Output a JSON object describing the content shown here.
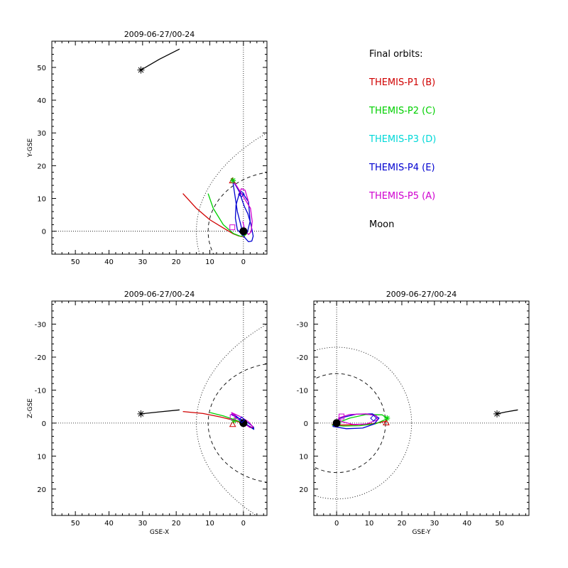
{
  "colors": {
    "p1": "#d00000",
    "p2": "#00d000",
    "p3": "#00d8d8",
    "p4": "#0000d0",
    "p5": "#d000d0",
    "moon": "#000000"
  },
  "legend": {
    "title": "Final orbits:",
    "items": [
      {
        "label": "THEMIS-P1 (B)",
        "color": "#d00000"
      },
      {
        "label": "THEMIS-P2 (C)",
        "color": "#00d000"
      },
      {
        "label": "THEMIS-P3 (D)",
        "color": "#00d8d8"
      },
      {
        "label": "THEMIS-P4 (E)",
        "color": "#0000d0"
      },
      {
        "label": "THEMIS-P5 (A)",
        "color": "#d000d0"
      },
      {
        "label": "Moon",
        "color": "#000000"
      }
    ]
  },
  "chart_data": [
    {
      "type": "line",
      "id": "xy",
      "title": "2009-06-27/00-24",
      "xlabel": "",
      "ylabel": "Y-GSE",
      "xlim": [
        57,
        -7
      ],
      "ylim": [
        58,
        -7
      ],
      "xticks": [
        50,
        40,
        30,
        20,
        10,
        0
      ],
      "yticks": [
        0,
        10,
        20,
        30,
        40,
        50
      ],
      "grid": false,
      "reference_lines": {
        "x0": true,
        "y0": true
      },
      "boundaries": {
        "bow_shock": "dotted",
        "magnetopause": "dashed"
      },
      "earth": {
        "x": 0,
        "y": 0,
        "r": 1.1
      },
      "moon_marker": {
        "x": 30.5,
        "y": 49.2
      },
      "series": [
        {
          "name": "Moon",
          "color": "#000000",
          "x": [
            30.5,
            25,
            19
          ],
          "y": [
            49.2,
            52.5,
            55.6
          ]
        },
        {
          "name": "THEMIS-P1 (B)",
          "color": "#d00000",
          "x": [
            18,
            14,
            10,
            6,
            3,
            1.5,
            0.5,
            -0.5
          ],
          "y": [
            11.5,
            7,
            3.5,
            1,
            -0.8,
            -1.4,
            -1.6,
            -1.5
          ]
        },
        {
          "name": "THEMIS-P2 (C)",
          "color": "#00d000",
          "x": [
            10.5,
            9,
            6,
            3,
            1,
            -0.2,
            -1.3
          ],
          "y": [
            11.5,
            7,
            2,
            -0.7,
            -1.5,
            -1.4,
            -0.5
          ]
        },
        {
          "name": "THEMIS-P4 (E)",
          "color": "#0000d0",
          "x": [
            3.6,
            2.3,
            1.2,
            0.4,
            -0.3,
            -1.3,
            -2.2,
            -2.7,
            -2.9,
            -2.5,
            -1.5,
            0,
            0.8,
            1.8,
            3.2
          ],
          "y": [
            16,
            14,
            12,
            9.5,
            7.5,
            5.4,
            2.2,
            -0.3,
            -1.5,
            -3,
            -3.2,
            -1.5,
            2,
            6,
            15.5
          ]
        },
        {
          "name": "THEMIS-P4 (E) inner",
          "color": "#0000d0",
          "x": [
            -2,
            -1.5,
            0,
            1.2,
            2.2,
            2.4,
            1.8,
            0.3,
            -1.1,
            -2
          ],
          "y": [
            3,
            9,
            11.3,
            11.6,
            8,
            4,
            0.5,
            -1.2,
            -0.5,
            3
          ]
        },
        {
          "name": "THEMIS-P5 (A)",
          "color": "#d000d0",
          "x": [
            3.5,
            2,
            0.6,
            -0.6,
            -2.1,
            -2.6,
            -2.3,
            -1.5,
            -0.5,
            0.2
          ],
          "y": [
            16,
            13.8,
            11.5,
            9.5,
            7,
            3,
            -0.2,
            -1,
            0,
            3
          ]
        },
        {
          "name": "THEMIS-P5 (A) tail",
          "color": "#d000d0",
          "x": [
            -1.5,
            -0.5,
            0.6,
            1.5
          ],
          "y": [
            9,
            12.5,
            13,
            11
          ]
        }
      ],
      "markers": [
        {
          "shape": "triangle",
          "color": "#d00000",
          "x": 3.3,
          "y": 15.4
        },
        {
          "shape": "diamond",
          "color": "#0000d0",
          "x": 0.6,
          "y": 11.3
        },
        {
          "shape": "cross",
          "color": "#00d000",
          "x": 3.1,
          "y": 15.5
        },
        {
          "shape": "square",
          "color": "#d000d0",
          "x": 3.3,
          "y": 1.2
        }
      ]
    },
    {
      "type": "line",
      "id": "xz",
      "title": "2009-06-27/00-24",
      "xlabel": "GSE-X",
      "ylabel": "Z-GSE",
      "xlim": [
        57,
        -7
      ],
      "ylim": [
        -37,
        28
      ],
      "xticks": [
        50,
        40,
        30,
        20,
        10,
        0
      ],
      "yticks": [
        20,
        10,
        0,
        -10,
        -20,
        -30
      ],
      "grid": false,
      "reference_lines": {
        "x0": true,
        "y0": true
      },
      "boundaries": {
        "bow_shock": "dotted",
        "magnetopause": "dashed"
      },
      "earth": {
        "x": 0,
        "y": 0,
        "r": 1.1
      },
      "moon_marker": {
        "x": 30.5,
        "y": -2.8
      },
      "series": [
        {
          "name": "Moon",
          "color": "#000000",
          "x": [
            30.5,
            25,
            19
          ],
          "y": [
            -2.8,
            -3.4,
            -4
          ]
        },
        {
          "name": "THEMIS-P1 (B)",
          "color": "#d00000",
          "x": [
            18,
            12,
            7,
            3,
            0,
            -3
          ],
          "y": [
            -3.5,
            -2.9,
            -1.9,
            -0.9,
            0.2,
            1.5
          ]
        },
        {
          "name": "THEMIS-P2 (C)",
          "color": "#00d000",
          "x": [
            10,
            6,
            2,
            -1,
            -3
          ],
          "y": [
            -3.2,
            -2.2,
            -0.8,
            0.6,
            1.8
          ]
        },
        {
          "name": "THEMIS-P4 (E)",
          "color": "#0000d0",
          "x": [
            3.5,
            1,
            -1.5,
            -3,
            -3.1,
            -1.5,
            0.5,
            3,
            3.7
          ],
          "y": [
            -2.5,
            -1.3,
            0,
            1.2,
            1.9,
            0.8,
            -0.8,
            -2.7,
            -2.6
          ]
        },
        {
          "name": "THEMIS-P5 (A)",
          "color": "#d000d0",
          "x": [
            3.6,
            1,
            -1.5,
            -2.8,
            -2,
            0,
            2.5,
            3.6
          ],
          "y": [
            -3.2,
            -2,
            -0.4,
            1.1,
            1.4,
            0,
            -1.8,
            -3.2
          ]
        }
      ],
      "markers": [
        {
          "shape": "triangle",
          "color": "#d00000",
          "x": 3.2,
          "y": 0.4
        },
        {
          "shape": "cross",
          "color": "#00d000",
          "x": 2.8,
          "y": -0.8
        },
        {
          "shape": "diamond",
          "color": "#0000d0",
          "x": 0.5,
          "y": -1
        },
        {
          "shape": "square",
          "color": "#d000d0",
          "x": 3.2,
          "y": -1.8
        }
      ]
    },
    {
      "type": "line",
      "id": "yz",
      "title": "2009-06-27/00-24",
      "xlabel": "GSE-Y",
      "ylabel": "",
      "xlim": [
        -7,
        59
      ],
      "ylim": [
        -37,
        28
      ],
      "xticks": [
        0,
        10,
        20,
        30,
        40,
        50
      ],
      "yticks": [
        20,
        10,
        0,
        -10,
        -20,
        -30
      ],
      "grid": false,
      "reference_lines": {
        "x0": true,
        "y0": true
      },
      "boundaries": {
        "bow_shock_radius": 23,
        "magnetopause_radius": 15
      },
      "earth": {
        "x": 0,
        "y": 0,
        "r": 1.1
      },
      "moon_marker": {
        "x": 49.2,
        "y": -2.8
      },
      "series": [
        {
          "name": "Moon",
          "color": "#000000",
          "x": [
            49.2,
            52,
            55.6
          ],
          "y": [
            -2.8,
            -3.4,
            -4
          ]
        },
        {
          "name": "THEMIS-P1 (B)",
          "color": "#d00000",
          "x": [
            -1.5,
            1,
            6,
            11,
            15.5
          ],
          "y": [
            0.4,
            0.6,
            0.5,
            0.2,
            -0.6
          ]
        },
        {
          "name": "THEMIS-P2 (C)",
          "color": "#00d000",
          "x": [
            -1.4,
            2,
            7,
            12,
            15.5,
            14,
            9,
            4,
            -1.4
          ],
          "y": [
            0.6,
            0.9,
            0.8,
            0.2,
            -1.3,
            -2.5,
            -2.6,
            -1.5,
            0.6
          ]
        },
        {
          "name": "THEMIS-P4 (E)",
          "color": "#0000d0",
          "x": [
            -1.2,
            3,
            8,
            11.5,
            13,
            11,
            6,
            1,
            -1.2
          ],
          "y": [
            1,
            1.7,
            1.5,
            0.3,
            -1.5,
            -2.8,
            -2.7,
            -1.5,
            1
          ]
        },
        {
          "name": "THEMIS-P5 (A)",
          "color": "#d000d0",
          "x": [
            0.5,
            4,
            9,
            12.2,
            12.5,
            9,
            5,
            1.5,
            0.5
          ],
          "y": [
            -1.5,
            -2.6,
            -2.8,
            -2.2,
            -1,
            0.3,
            0.4,
            -0.5,
            -1.5
          ]
        }
      ],
      "markers": [
        {
          "shape": "triangle",
          "color": "#d00000",
          "x": 15.2,
          "y": -0.1
        },
        {
          "shape": "cross",
          "color": "#00d000",
          "x": 15.5,
          "y": -1.5
        },
        {
          "shape": "diamond",
          "color": "#0000d0",
          "x": 11.3,
          "y": -1.5
        },
        {
          "shape": "square",
          "color": "#d000d0",
          "x": 1.5,
          "y": -2
        }
      ]
    }
  ]
}
